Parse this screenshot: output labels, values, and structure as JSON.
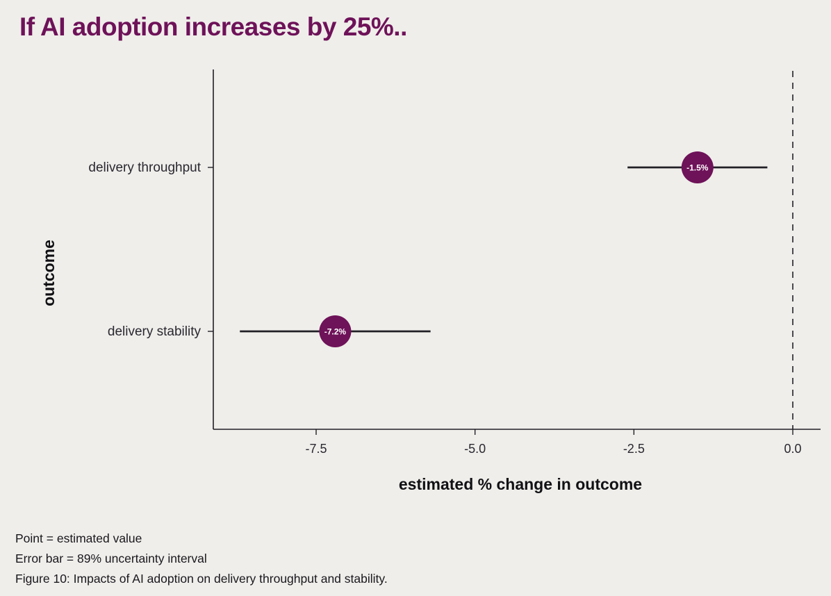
{
  "title": "If AI adoption increases by 25%..",
  "colors": {
    "background": "#efeeea",
    "title": "#6e1259",
    "point": "#6e1259",
    "point_label": "#ffffff",
    "error_bar": "#211f26",
    "axis": "#211f26"
  },
  "chart_data": {
    "type": "scatter",
    "subtype": "point-with-error-bars",
    "xlabel": "estimated % change in outcome",
    "ylabel": "outcome",
    "xlim": [
      -9.0,
      0.4
    ],
    "xticks": [
      -7.5,
      -5.0,
      -2.5,
      0.0
    ],
    "xtick_labels": [
      "-7.5",
      "-5.0",
      "-2.5",
      "0.0"
    ],
    "reference_line": {
      "x": 0.0,
      "style": "dashed"
    },
    "grid": false,
    "categories": [
      "delivery throughput",
      "delivery stability"
    ],
    "points": [
      {
        "category": "delivery throughput",
        "value": -1.5,
        "label": "-1.5%",
        "lower": -2.6,
        "upper": -0.4
      },
      {
        "category": "delivery stability",
        "value": -7.2,
        "label": "-7.2%",
        "lower": -8.7,
        "upper": -5.7
      }
    ]
  },
  "notes": [
    "Point = estimated value",
    "Error bar = 89% uncertainty interval",
    "Figure 10: Impacts of AI adoption on delivery throughput and stability."
  ]
}
